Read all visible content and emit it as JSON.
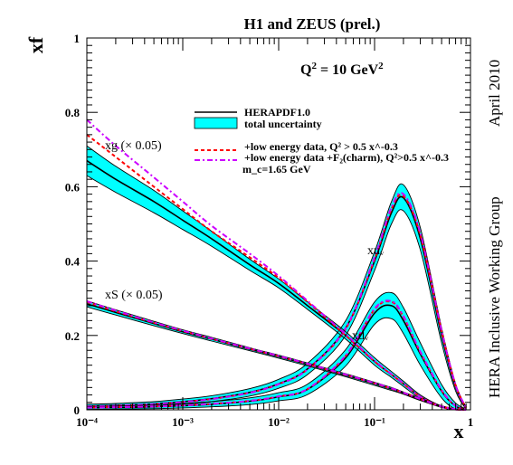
{
  "chart_data": {
    "type": "line",
    "title": "H1 and ZEUS (prel.)",
    "annotation": "Q² = 10 GeV²",
    "xlabel": "x",
    "ylabel": "xf",
    "xscale": "log",
    "xlim": [
      0.0001,
      1
    ],
    "ylim": [
      0,
      1
    ],
    "x_ticks": [
      "10⁻⁴",
      "10⁻³",
      "10⁻²",
      "10⁻¹",
      "1"
    ],
    "y_ticks": [
      "0",
      "0.2",
      "0.4",
      "0.6",
      "0.8",
      "1"
    ],
    "side_labels": [
      "April 2010",
      "HERA Inclusive Working Group"
    ],
    "extra_note": "m_c=1.65 GeV",
    "legend": [
      {
        "label": "HERAPDF1.0",
        "color": "#000000",
        "style": "solid"
      },
      {
        "label": "total uncertainty",
        "color": "#00ffff",
        "style": "band"
      },
      {
        "label": "+low energy data, Q² > 0.5 x^-0.3",
        "color": "#ff0000",
        "style": "dashed"
      },
      {
        "label": "+low energy data +F₂(charm), Q²>0.5 x^-0.3",
        "color": "#cc00ff",
        "style": "dashdot"
      }
    ],
    "x": [
      0.0001,
      0.0002,
      0.0005,
      0.001,
      0.002,
      0.005,
      0.01,
      0.02,
      0.05,
      0.1,
      0.15,
      0.2,
      0.3,
      0.5,
      0.7,
      0.9
    ],
    "series": [
      {
        "name": "xuᵥ",
        "label": "xuᵥ",
        "central": [
          0.01,
          0.012,
          0.016,
          0.022,
          0.03,
          0.047,
          0.07,
          0.11,
          0.22,
          0.4,
          0.53,
          0.57,
          0.46,
          0.2,
          0.06,
          0.005
        ],
        "unc": [
          0.005,
          0.005,
          0.006,
          0.007,
          0.008,
          0.01,
          0.012,
          0.015,
          0.02,
          0.025,
          0.03,
          0.035,
          0.03,
          0.02,
          0.01,
          0.003
        ],
        "red": [
          0.009,
          0.011,
          0.015,
          0.021,
          0.029,
          0.046,
          0.069,
          0.109,
          0.218,
          0.405,
          0.54,
          0.575,
          0.47,
          0.21,
          0.065,
          0.006
        ],
        "magenta": [
          0.009,
          0.011,
          0.015,
          0.021,
          0.029,
          0.046,
          0.069,
          0.109,
          0.22,
          0.41,
          0.545,
          0.58,
          0.475,
          0.212,
          0.066,
          0.006
        ]
      },
      {
        "name": "xdᵥ",
        "label": "xdᵥ",
        "central": [
          0.005,
          0.006,
          0.008,
          0.011,
          0.015,
          0.023,
          0.035,
          0.055,
          0.14,
          0.26,
          0.28,
          0.24,
          0.15,
          0.05,
          0.01,
          0.001
        ],
        "unc": [
          0.004,
          0.004,
          0.005,
          0.006,
          0.007,
          0.009,
          0.011,
          0.014,
          0.022,
          0.03,
          0.035,
          0.035,
          0.03,
          0.018,
          0.008,
          0.002
        ],
        "red": [
          0.006,
          0.007,
          0.009,
          0.012,
          0.016,
          0.024,
          0.036,
          0.056,
          0.145,
          0.27,
          0.29,
          0.25,
          0.155,
          0.052,
          0.011,
          0.001
        ],
        "magenta": [
          0.006,
          0.007,
          0.009,
          0.012,
          0.016,
          0.024,
          0.036,
          0.056,
          0.146,
          0.272,
          0.292,
          0.252,
          0.156,
          0.053,
          0.011,
          0.001
        ]
      },
      {
        "name": "xg (× 0.05)",
        "label": "xg (× 0.05)",
        "central": [
          0.67,
          0.62,
          0.56,
          0.51,
          0.46,
          0.39,
          0.34,
          0.28,
          0.2,
          0.13,
          0.095,
          0.07,
          0.035,
          0.008,
          0.001,
          0.0
        ],
        "unc": [
          0.04,
          0.035,
          0.03,
          0.025,
          0.02,
          0.015,
          0.012,
          0.01,
          0.01,
          0.01,
          0.008,
          0.007,
          0.005,
          0.002,
          0.001,
          0.0
        ],
        "red": [
          0.74,
          0.68,
          0.6,
          0.54,
          0.48,
          0.41,
          0.355,
          0.29,
          0.2,
          0.13,
          0.095,
          0.07,
          0.035,
          0.008,
          0.001,
          0.0
        ],
        "magenta": [
          0.78,
          0.71,
          0.625,
          0.56,
          0.495,
          0.42,
          0.36,
          0.293,
          0.203,
          0.132,
          0.096,
          0.071,
          0.035,
          0.008,
          0.001,
          0.0
        ]
      },
      {
        "name": "xS (× 0.05)",
        "label": "xS (× 0.05)",
        "central": [
          0.285,
          0.262,
          0.232,
          0.21,
          0.19,
          0.163,
          0.143,
          0.122,
          0.093,
          0.07,
          0.056,
          0.045,
          0.028,
          0.009,
          0.002,
          0.0
        ],
        "unc": [
          0.008,
          0.007,
          0.006,
          0.005,
          0.005,
          0.004,
          0.004,
          0.004,
          0.004,
          0.004,
          0.004,
          0.003,
          0.003,
          0.002,
          0.001,
          0.0
        ],
        "red": [
          0.29,
          0.265,
          0.234,
          0.212,
          0.191,
          0.164,
          0.144,
          0.123,
          0.094,
          0.071,
          0.057,
          0.046,
          0.029,
          0.009,
          0.002,
          0.0
        ],
        "magenta": [
          0.292,
          0.267,
          0.235,
          0.213,
          0.192,
          0.165,
          0.145,
          0.124,
          0.095,
          0.072,
          0.058,
          0.046,
          0.029,
          0.009,
          0.002,
          0.0
        ]
      }
    ]
  }
}
